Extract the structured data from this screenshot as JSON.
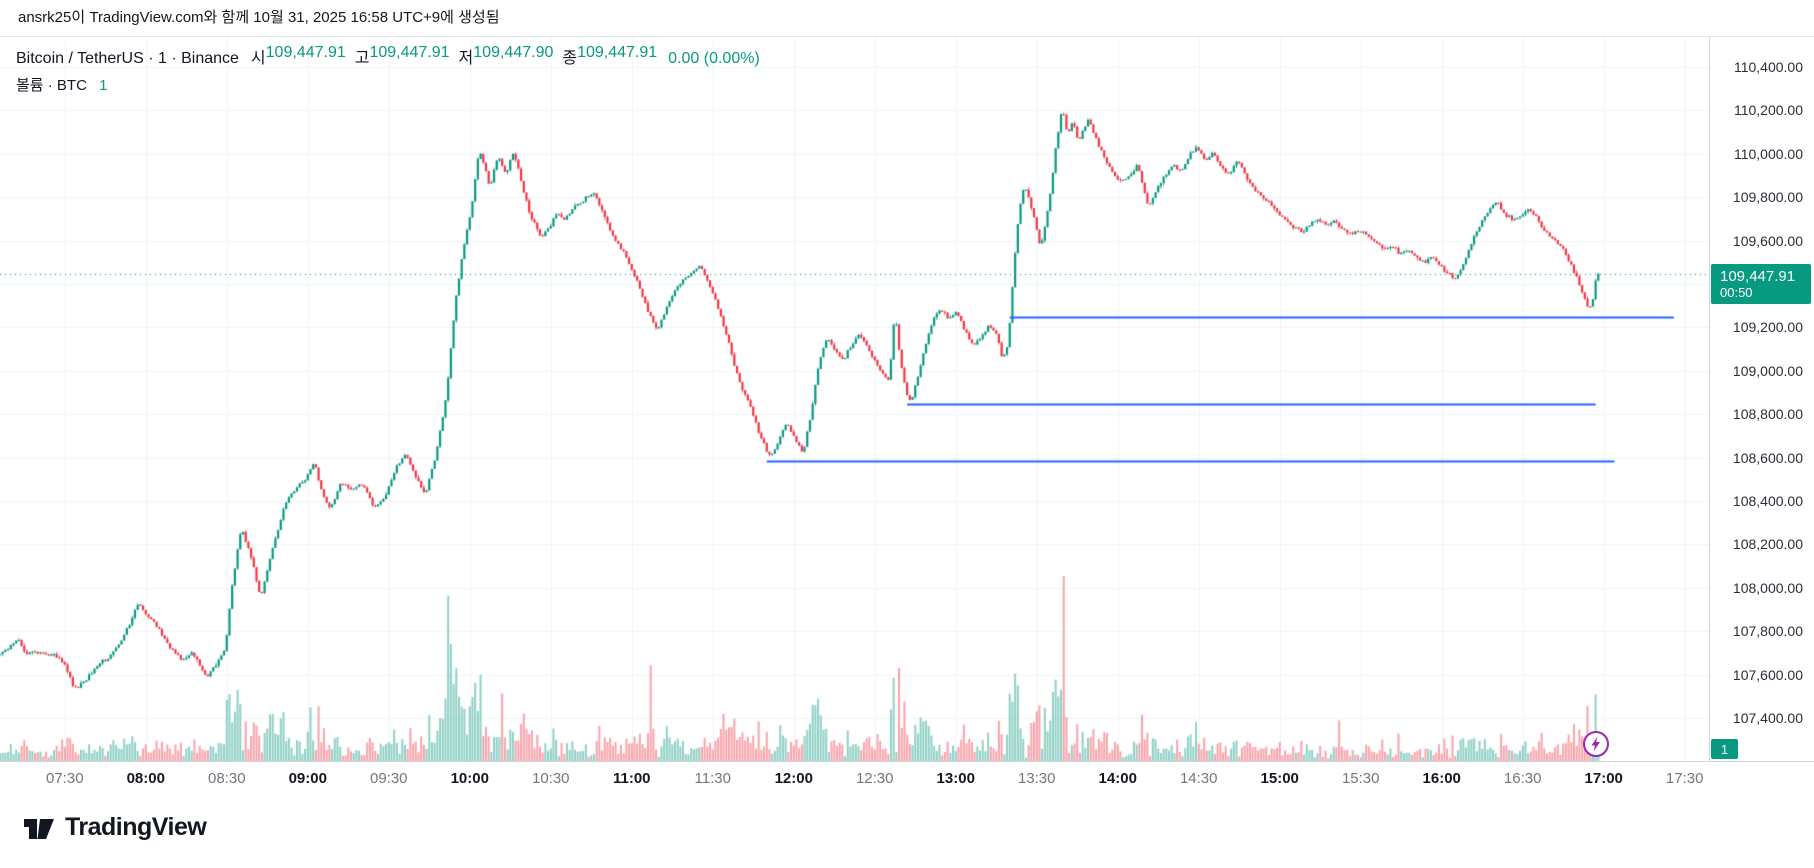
{
  "attribution": {
    "text": "ansrk25이 TradingView.com와 함께 10월 31, 2025 16:58 UTC+9에 생성됨"
  },
  "legend": {
    "title": "Bitcoin / TetherUS · 1 · Binance",
    "ohlc": [
      {
        "label": "시",
        "value": "109,447.91"
      },
      {
        "label": "고",
        "value": "109,447.91"
      },
      {
        "label": "저",
        "value": "109,447.90"
      },
      {
        "label": "종",
        "value": "109,447.91"
      }
    ],
    "change": "0.00 (0.00%)",
    "volume_title": "볼륨 · BTC",
    "volume_value": "1"
  },
  "price_label": {
    "price": "109,447.91",
    "countdown": "00:50"
  },
  "footer": {
    "logo_text": "TradingView"
  },
  "colors": {
    "up": "#089981",
    "down": "#f23645",
    "vol_up": "rgba(8,153,129,0.45)",
    "vol_down": "rgba(242,54,69,0.45)",
    "line": "#2962ff",
    "purple": "#9c27b0",
    "grid": "#f0f3fa",
    "border": "#e0e3eb",
    "axis_border": "#d1d4dc",
    "text": "#131722",
    "muted": "#73767e"
  },
  "chart_data": {
    "type": "candlestick",
    "title": "Bitcoin / TetherUS · 1 · Binance",
    "interval_minutes": 1,
    "session_start": "07:06",
    "session_end": "16:58",
    "last_price": 109447.91,
    "x_range": {
      "start": "07:06",
      "end": "17:39"
    },
    "y_range": [
      107202,
      110538
    ],
    "y_ticks": {
      "start": 107400,
      "end": 110400,
      "step": 200
    },
    "time_ticks": [
      "07:30",
      "08:00",
      "08:30",
      "09:00",
      "09:30",
      "10:00",
      "10:30",
      "11:00",
      "11:30",
      "12:00",
      "12:30",
      "13:00",
      "13:30",
      "14:00",
      "14:30",
      "15:00",
      "15:30",
      "16:00",
      "16:30",
      "17:00",
      "17:30"
    ],
    "price_path": [
      [
        "07:06",
        107690
      ],
      [
        "07:10",
        107720
      ],
      [
        "07:13",
        107770
      ],
      [
        "07:16",
        107700
      ],
      [
        "07:22",
        107700
      ],
      [
        "07:27",
        107690
      ],
      [
        "07:31",
        107640
      ],
      [
        "07:34",
        107530
      ],
      [
        "07:38",
        107570
      ],
      [
        "07:43",
        107650
      ],
      [
        "07:48",
        107690
      ],
      [
        "07:53",
        107790
      ],
      [
        "07:58",
        107930
      ],
      [
        "08:02",
        107860
      ],
      [
        "08:06",
        107800
      ],
      [
        "08:10",
        107720
      ],
      [
        "08:14",
        107670
      ],
      [
        "08:18",
        107700
      ],
      [
        "08:23",
        107590
      ],
      [
        "08:27",
        107650
      ],
      [
        "08:30",
        107720
      ],
      [
        "08:33",
        108050
      ],
      [
        "08:36",
        108280
      ],
      [
        "08:40",
        108130
      ],
      [
        "08:43",
        107950
      ],
      [
        "08:47",
        108150
      ],
      [
        "08:52",
        108380
      ],
      [
        "08:56",
        108460
      ],
      [
        "09:00",
        108500
      ],
      [
        "09:03",
        108580
      ],
      [
        "09:06",
        108430
      ],
      [
        "09:09",
        108360
      ],
      [
        "09:13",
        108490
      ],
      [
        "09:17",
        108450
      ],
      [
        "09:21",
        108480
      ],
      [
        "09:25",
        108370
      ],
      [
        "09:29",
        108410
      ],
      [
        "09:33",
        108550
      ],
      [
        "09:37",
        108610
      ],
      [
        "09:41",
        108500
      ],
      [
        "09:44",
        108430
      ],
      [
        "09:48",
        108600
      ],
      [
        "09:52",
        108890
      ],
      [
        "09:55",
        109290
      ],
      [
        "09:58",
        109550
      ],
      [
        "10:01",
        109730
      ],
      [
        "10:04",
        110020
      ],
      [
        "10:06",
        109950
      ],
      [
        "10:08",
        109840
      ],
      [
        "10:11",
        109990
      ],
      [
        "10:14",
        109910
      ],
      [
        "10:17",
        110010
      ],
      [
        "10:20",
        109850
      ],
      [
        "10:23",
        109720
      ],
      [
        "10:27",
        109620
      ],
      [
        "10:30",
        109660
      ],
      [
        "10:33",
        109730
      ],
      [
        "10:36",
        109700
      ],
      [
        "10:40",
        109760
      ],
      [
        "10:44",
        109800
      ],
      [
        "10:47",
        109820
      ],
      [
        "10:50",
        109720
      ],
      [
        "10:54",
        109610
      ],
      [
        "10:58",
        109540
      ],
      [
        "11:01",
        109460
      ],
      [
        "11:04",
        109370
      ],
      [
        "11:07",
        109260
      ],
      [
        "11:10",
        109190
      ],
      [
        "11:14",
        109300
      ],
      [
        "11:18",
        109400
      ],
      [
        "11:22",
        109440
      ],
      [
        "11:26",
        109480
      ],
      [
        "11:30",
        109380
      ],
      [
        "11:33",
        109270
      ],
      [
        "11:36",
        109150
      ],
      [
        "11:39",
        109010
      ],
      [
        "11:42",
        108900
      ],
      [
        "11:45",
        108820
      ],
      [
        "11:48",
        108700
      ],
      [
        "11:52",
        108600
      ],
      [
        "11:55",
        108680
      ],
      [
        "11:58",
        108760
      ],
      [
        "12:01",
        108690
      ],
      [
        "12:04",
        108620
      ],
      [
        "12:07",
        108800
      ],
      [
        "12:10",
        109040
      ],
      [
        "12:13",
        109150
      ],
      [
        "12:16",
        109100
      ],
      [
        "12:19",
        109050
      ],
      [
        "12:22",
        109120
      ],
      [
        "12:25",
        109170
      ],
      [
        "12:28",
        109100
      ],
      [
        "12:31",
        109040
      ],
      [
        "12:34",
        108970
      ],
      [
        "12:36",
        108960
      ],
      [
        "12:38",
        109270
      ],
      [
        "12:40",
        109060
      ],
      [
        "12:42",
        108910
      ],
      [
        "12:44",
        108850
      ],
      [
        "12:46",
        108950
      ],
      [
        "12:49",
        109100
      ],
      [
        "12:52",
        109230
      ],
      [
        "12:55",
        109290
      ],
      [
        "12:58",
        109240
      ],
      [
        "13:01",
        109270
      ],
      [
        "13:04",
        109180
      ],
      [
        "13:07",
        109120
      ],
      [
        "13:10",
        109160
      ],
      [
        "13:13",
        109210
      ],
      [
        "13:16",
        109160
      ],
      [
        "13:18",
        109050
      ],
      [
        "13:20",
        109120
      ],
      [
        "13:22",
        109460
      ],
      [
        "13:24",
        109740
      ],
      [
        "13:26",
        109850
      ],
      [
        "13:28",
        109780
      ],
      [
        "13:30",
        109690
      ],
      [
        "13:32",
        109570
      ],
      [
        "13:34",
        109680
      ],
      [
        "13:36",
        109850
      ],
      [
        "13:38",
        110060
      ],
      [
        "13:40",
        110210
      ],
      [
        "13:42",
        110090
      ],
      [
        "13:44",
        110150
      ],
      [
        "13:46",
        110050
      ],
      [
        "13:48",
        110110
      ],
      [
        "13:50",
        110160
      ],
      [
        "13:53",
        110050
      ],
      [
        "13:57",
        109950
      ],
      [
        "14:01",
        109870
      ],
      [
        "14:05",
        109900
      ],
      [
        "14:08",
        109950
      ],
      [
        "14:12",
        109750
      ],
      [
        "14:15",
        109830
      ],
      [
        "14:18",
        109900
      ],
      [
        "14:21",
        109950
      ],
      [
        "14:24",
        109920
      ],
      [
        "14:27",
        109990
      ],
      [
        "14:30",
        110030
      ],
      [
        "14:33",
        109970
      ],
      [
        "14:36",
        110000
      ],
      [
        "14:39",
        109940
      ],
      [
        "14:42",
        109900
      ],
      [
        "14:45",
        109980
      ],
      [
        "14:48",
        109900
      ],
      [
        "14:51",
        109840
      ],
      [
        "14:54",
        109800
      ],
      [
        "14:57",
        109780
      ],
      [
        "15:00",
        109720
      ],
      [
        "15:03",
        109690
      ],
      [
        "15:06",
        109660
      ],
      [
        "15:09",
        109640
      ],
      [
        "15:12",
        109680
      ],
      [
        "15:15",
        109700
      ],
      [
        "15:18",
        109670
      ],
      [
        "15:21",
        109690
      ],
      [
        "15:24",
        109650
      ],
      [
        "15:27",
        109630
      ],
      [
        "15:30",
        109650
      ],
      [
        "15:33",
        109620
      ],
      [
        "15:36",
        109590
      ],
      [
        "15:39",
        109560
      ],
      [
        "15:42",
        109580
      ],
      [
        "15:45",
        109540
      ],
      [
        "15:48",
        109560
      ],
      [
        "15:51",
        109530
      ],
      [
        "15:54",
        109500
      ],
      [
        "15:57",
        109520
      ],
      [
        "16:00",
        109480
      ],
      [
        "16:03",
        109450
      ],
      [
        "16:06",
        109420
      ],
      [
        "16:09",
        109500
      ],
      [
        "16:12",
        109600
      ],
      [
        "16:15",
        109680
      ],
      [
        "16:18",
        109740
      ],
      [
        "16:21",
        109780
      ],
      [
        "16:24",
        109720
      ],
      [
        "16:27",
        109700
      ],
      [
        "16:30",
        109720
      ],
      [
        "16:33",
        109750
      ],
      [
        "16:36",
        109700
      ],
      [
        "16:39",
        109640
      ],
      [
        "16:42",
        109600
      ],
      [
        "16:45",
        109570
      ],
      [
        "16:48",
        109500
      ],
      [
        "16:51",
        109420
      ],
      [
        "16:54",
        109310
      ],
      [
        "16:56",
        109290
      ],
      [
        "16:58",
        109448
      ]
    ],
    "volume_spikes": [
      [
        "08:34",
        40
      ],
      [
        "09:01",
        30
      ],
      [
        "09:52",
        82
      ],
      [
        "10:04",
        48
      ],
      [
        "10:12",
        36
      ],
      [
        "11:07",
        56
      ],
      [
        "12:08",
        28
      ],
      [
        "13:22",
        46
      ],
      [
        "13:40",
        100
      ],
      [
        "14:29",
        22
      ],
      [
        "15:22",
        20
      ],
      [
        "16:54",
        30
      ]
    ],
    "lines": [
      {
        "price": 109250,
        "from": "13:20",
        "to": "17:26"
      },
      {
        "price": 108845,
        "from": "12:42",
        "to": "16:57"
      },
      {
        "price": 108585,
        "from": "11:50",
        "to": "17:04"
      }
    ]
  }
}
